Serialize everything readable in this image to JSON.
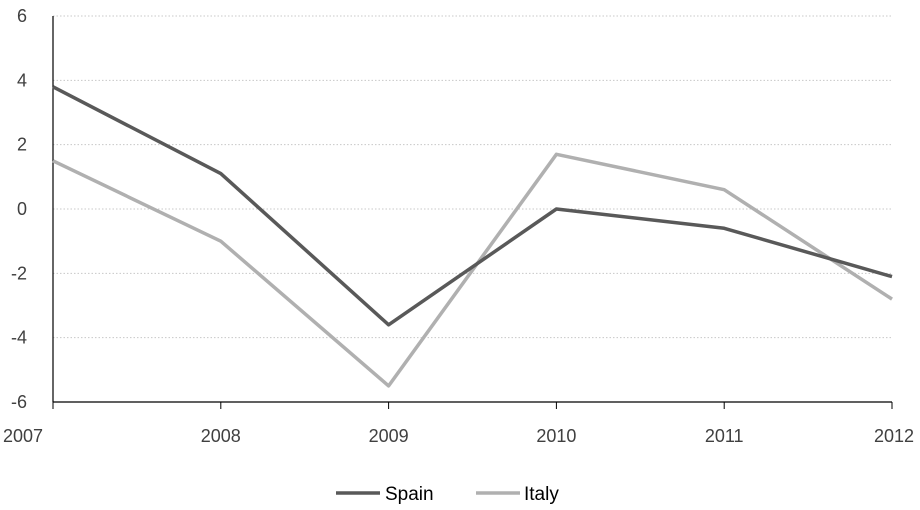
{
  "chart_data": {
    "type": "line",
    "title": "",
    "xlabel": "",
    "ylabel": "",
    "x": [
      "2007",
      "2008",
      "2009",
      "2010",
      "2011",
      "2012"
    ],
    "ylim": [
      -6,
      6
    ],
    "yticks": [
      "6",
      "4",
      "2",
      "0",
      "-2",
      "-4",
      "-6"
    ],
    "ytick_values": [
      6,
      4,
      2,
      0,
      -2,
      -4,
      -6
    ],
    "grid": true,
    "legend_position": "bottom",
    "series": [
      {
        "name": "Spain",
        "color": "#595959",
        "values": [
          3.8,
          1.1,
          -3.6,
          0.0,
          -0.6,
          -2.1
        ]
      },
      {
        "name": "Italy",
        "color": "#b0b0b0",
        "values": [
          1.5,
          -1.0,
          -5.5,
          1.7,
          0.6,
          -2.8
        ]
      }
    ]
  }
}
